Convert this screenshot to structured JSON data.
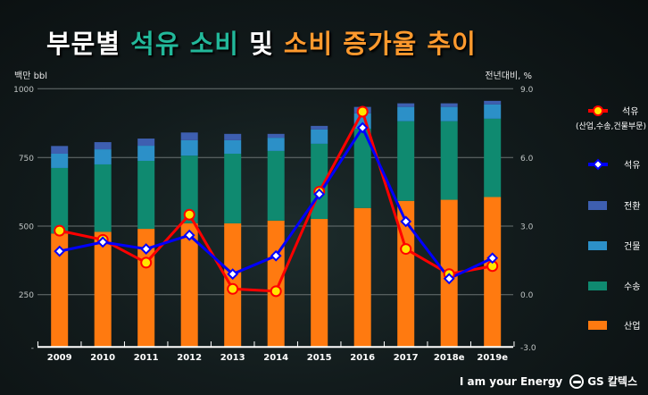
{
  "title": {
    "part1": "부문별 ",
    "part2": "석유 소비",
    "part3": " 및 ",
    "part4": "소비 증가율 추이"
  },
  "colors": {
    "산업": "#ff7a10",
    "수송": "#0f8a70",
    "건물": "#2c90c8",
    "전환": "#3e5fb0",
    "line_red": "#ff0000",
    "marker_yellow": "#ffe600",
    "line_blue": "#0000ff"
  },
  "footer": {
    "slogan": "I am your Energy",
    "brand": "GS 칼텍스"
  },
  "chart_data": {
    "type": "bar+line",
    "left_axis": {
      "label": "백만 bbl",
      "ticks": [
        "1000",
        "750",
        "500",
        "250",
        "-"
      ],
      "ylim": [
        0,
        1000
      ]
    },
    "right_axis": {
      "label": "전년대비, %",
      "ticks": [
        "9.0",
        "6.0",
        "3.0",
        "0.0",
        "-3.0"
      ],
      "ylim": [
        -3.0,
        9.0
      ]
    },
    "grid": true,
    "legend_position": "right",
    "categories": [
      "2009",
      "2010",
      "2011",
      "2012",
      "2013",
      "2014",
      "2015",
      "2016",
      "2017",
      "2018e",
      "2019e"
    ],
    "bar_series": [
      {
        "name": "산업",
        "values": [
          473,
          479,
          490,
          510,
          510,
          520,
          526,
          566,
          592,
          596,
          606
        ]
      },
      {
        "name": "수송",
        "values": [
          239,
          246,
          248,
          247,
          254,
          254,
          274,
          289,
          290,
          286,
          285
        ]
      },
      {
        "name": "건물",
        "values": [
          52,
          55,
          55,
          56,
          49,
          48,
          52,
          56,
          52,
          52,
          52
        ]
      },
      {
        "name": "전환",
        "values": [
          28,
          26,
          26,
          28,
          23,
          14,
          13,
          23,
          13,
          13,
          13
        ]
      }
    ],
    "line_series": [
      {
        "name": "석유",
        "note": "(산업,수송,건물부문)",
        "marker": "circle",
        "values": [
          2.8,
          2.4,
          1.4,
          3.5,
          0.25,
          0.15,
          4.5,
          8.0,
          2.0,
          0.9,
          1.25
        ]
      },
      {
        "name": "석유",
        "marker": "diamond",
        "values": [
          1.9,
          2.3,
          2.0,
          2.6,
          0.9,
          1.7,
          4.4,
          7.3,
          3.2,
          0.7,
          1.6
        ]
      }
    ]
  }
}
